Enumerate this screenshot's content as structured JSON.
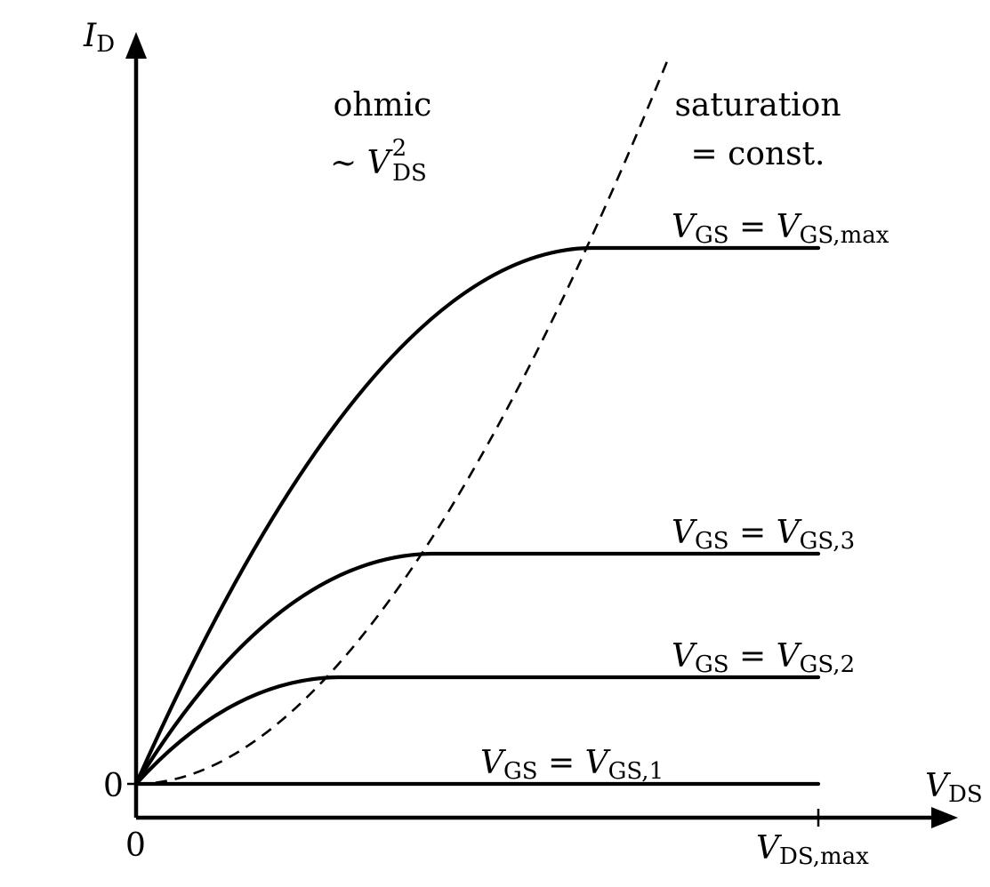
{
  "axes": {
    "y_label": {
      "main": "I",
      "sub": "D"
    },
    "x_label": {
      "main": "V",
      "sub": "DS"
    },
    "y_origin_tick": "0",
    "x_origin_tick": "0",
    "x_max_tick": {
      "main": "V",
      "sub": "DS,max"
    }
  },
  "regions": {
    "ohmic": {
      "line1": "ohmic",
      "line2_prefix": "∼ ",
      "line2_main": "V",
      "line2_sup": "2",
      "line2_sub": "DS"
    },
    "saturation": {
      "line1": "saturation",
      "line2": "= const."
    }
  },
  "curves": [
    {
      "id": "vgs1",
      "label_left": "V",
      "label_left_sub": "GS",
      "label_eq": " = ",
      "label_right": "V",
      "label_right_sub": "GS,1"
    },
    {
      "id": "vgs2",
      "label_left": "V",
      "label_left_sub": "GS",
      "label_eq": " = ",
      "label_right": "V",
      "label_right_sub": "GS,2"
    },
    {
      "id": "vgs3",
      "label_left": "V",
      "label_left_sub": "GS",
      "label_eq": " = ",
      "label_right": "V",
      "label_right_sub": "GS,3"
    },
    {
      "id": "vgsmax",
      "label_left": "V",
      "label_left_sub": "GS",
      "label_eq": " = ",
      "label_right": "V",
      "label_right_sub": "GS,max"
    }
  ]
}
